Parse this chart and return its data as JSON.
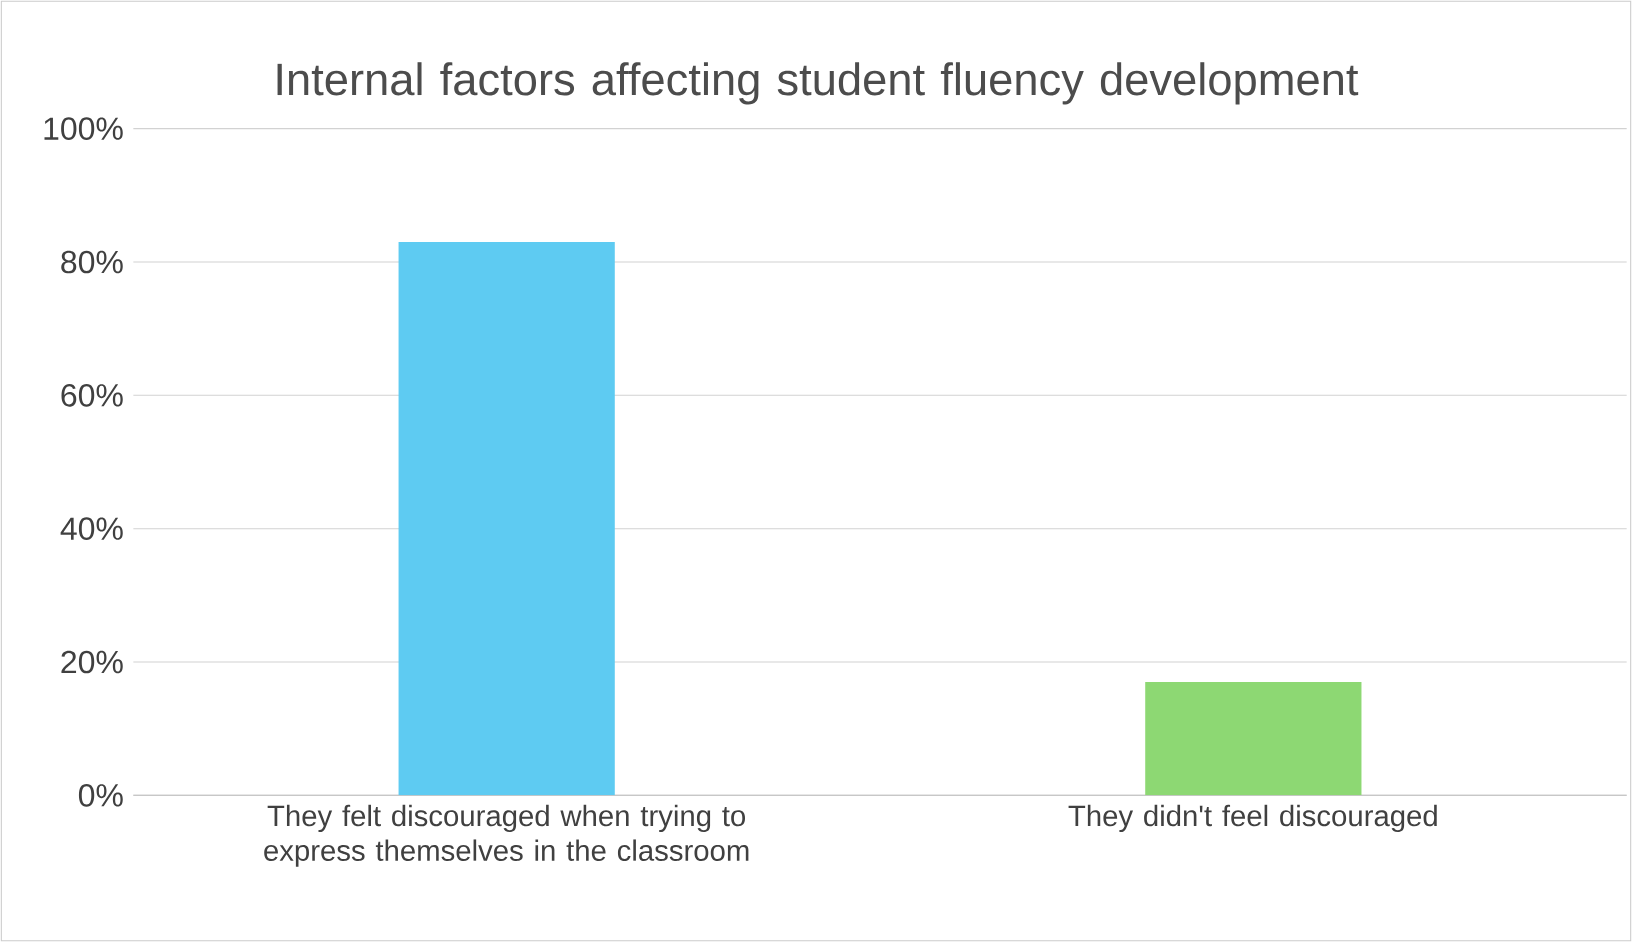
{
  "chart_data": {
    "type": "bar",
    "title": "Internal factors affecting student fluency development",
    "categories": [
      "They felt discouraged when trying to express themselves in the classroom",
      "They didn't feel discouraged"
    ],
    "values": [
      83,
      17
    ],
    "colors": [
      "#5ecbf2",
      "#8dd873"
    ],
    "ylim": [
      0,
      100
    ],
    "yticks": [
      {
        "value": 0,
        "label": "0%"
      },
      {
        "value": 20,
        "label": "20%"
      },
      {
        "value": 40,
        "label": "40%"
      },
      {
        "value": 60,
        "label": "60%"
      },
      {
        "value": 80,
        "label": "80%"
      },
      {
        "value": 100,
        "label": "100%"
      }
    ],
    "grid": "y"
  }
}
